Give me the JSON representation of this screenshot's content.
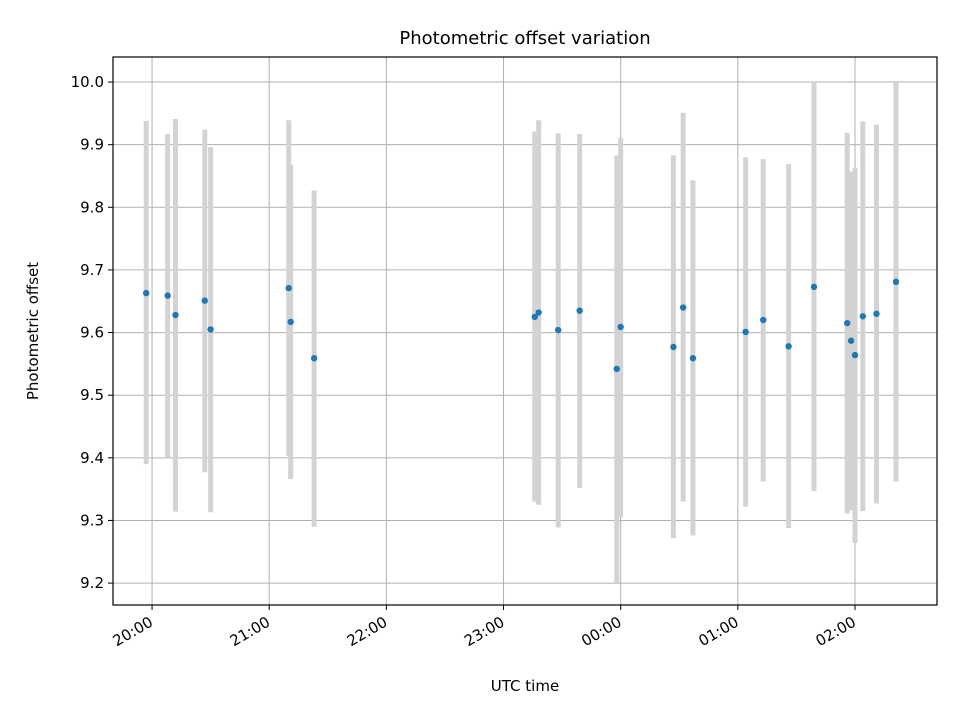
{
  "chart_data": {
    "type": "scatter",
    "title": "Photometric offset variation",
    "xlabel": "UTC time",
    "ylabel": "Photometric offset",
    "xlim": [
      "19:40",
      "02:42"
    ],
    "ylim": [
      9.165,
      10.04
    ],
    "grid": true,
    "x_ticks": [
      "20:00",
      "21:00",
      "22:00",
      "23:00",
      "00:00",
      "01:00",
      "02:00"
    ],
    "y_ticks": [
      9.2,
      9.3,
      9.4,
      9.5,
      9.6,
      9.7,
      9.8,
      9.9,
      10.0
    ],
    "y_tick_labels": [
      "9.2",
      "9.3",
      "9.4",
      "9.5",
      "9.6",
      "9.7",
      "9.8",
      "9.9",
      "10.0"
    ],
    "marker_color": "#1f77b4",
    "errorbar_color": "#d3d3d3",
    "points": [
      {
        "t": "19:57",
        "y": 9.663,
        "err_low": 9.39,
        "err_high": 9.938
      },
      {
        "t": "20:08",
        "y": 9.659,
        "err_low": 9.4,
        "err_high": 9.917
      },
      {
        "t": "20:12",
        "y": 9.628,
        "err_low": 9.314,
        "err_high": 9.941
      },
      {
        "t": "20:27",
        "y": 9.651,
        "err_low": 9.377,
        "err_high": 9.924
      },
      {
        "t": "20:30",
        "y": 9.605,
        "err_low": 9.313,
        "err_high": 9.896
      },
      {
        "t": "21:10",
        "y": 9.671,
        "err_low": 9.403,
        "err_high": 9.939
      },
      {
        "t": "21:11",
        "y": 9.617,
        "err_low": 9.366,
        "err_high": 9.868
      },
      {
        "t": "21:23",
        "y": 9.559,
        "err_low": 9.29,
        "err_high": 9.827
      },
      {
        "t": "23:16",
        "y": 9.625,
        "err_low": 9.33,
        "err_high": 9.921
      },
      {
        "t": "23:18",
        "y": 9.632,
        "err_low": 9.325,
        "err_high": 9.939
      },
      {
        "t": "23:28",
        "y": 9.604,
        "err_low": 9.289,
        "err_high": 9.918
      },
      {
        "t": "23:39",
        "y": 9.635,
        "err_low": 9.352,
        "err_high": 9.917
      },
      {
        "t": "23:58",
        "y": 9.542,
        "err_low": 9.201,
        "err_high": 9.883
      },
      {
        "t": "00:00",
        "y": 9.609,
        "err_low": 9.305,
        "err_high": 9.911
      },
      {
        "t": "00:27",
        "y": 9.577,
        "err_low": 9.272,
        "err_high": 9.883
      },
      {
        "t": "00:32",
        "y": 9.64,
        "err_low": 9.33,
        "err_high": 9.951
      },
      {
        "t": "00:37",
        "y": 9.559,
        "err_low": 9.276,
        "err_high": 9.843
      },
      {
        "t": "01:04",
        "y": 9.601,
        "err_low": 9.322,
        "err_high": 9.88
      },
      {
        "t": "01:13",
        "y": 9.62,
        "err_low": 9.362,
        "err_high": 9.877
      },
      {
        "t": "01:26",
        "y": 9.578,
        "err_low": 9.288,
        "err_high": 9.869
      },
      {
        "t": "01:39",
        "y": 9.673,
        "err_low": 9.347,
        "err_high": 10.0
      },
      {
        "t": "01:56",
        "y": 9.615,
        "err_low": 9.311,
        "err_high": 9.919
      },
      {
        "t": "01:58",
        "y": 9.587,
        "err_low": 9.316,
        "err_high": 9.857
      },
      {
        "t": "02:00",
        "y": 9.564,
        "err_low": 9.264,
        "err_high": 9.863
      },
      {
        "t": "02:04",
        "y": 9.626,
        "err_low": 9.315,
        "err_high": 9.937
      },
      {
        "t": "02:11",
        "y": 9.63,
        "err_low": 9.327,
        "err_high": 9.932
      },
      {
        "t": "02:21",
        "y": 9.681,
        "err_low": 9.362,
        "err_high": 10.0
      }
    ]
  }
}
